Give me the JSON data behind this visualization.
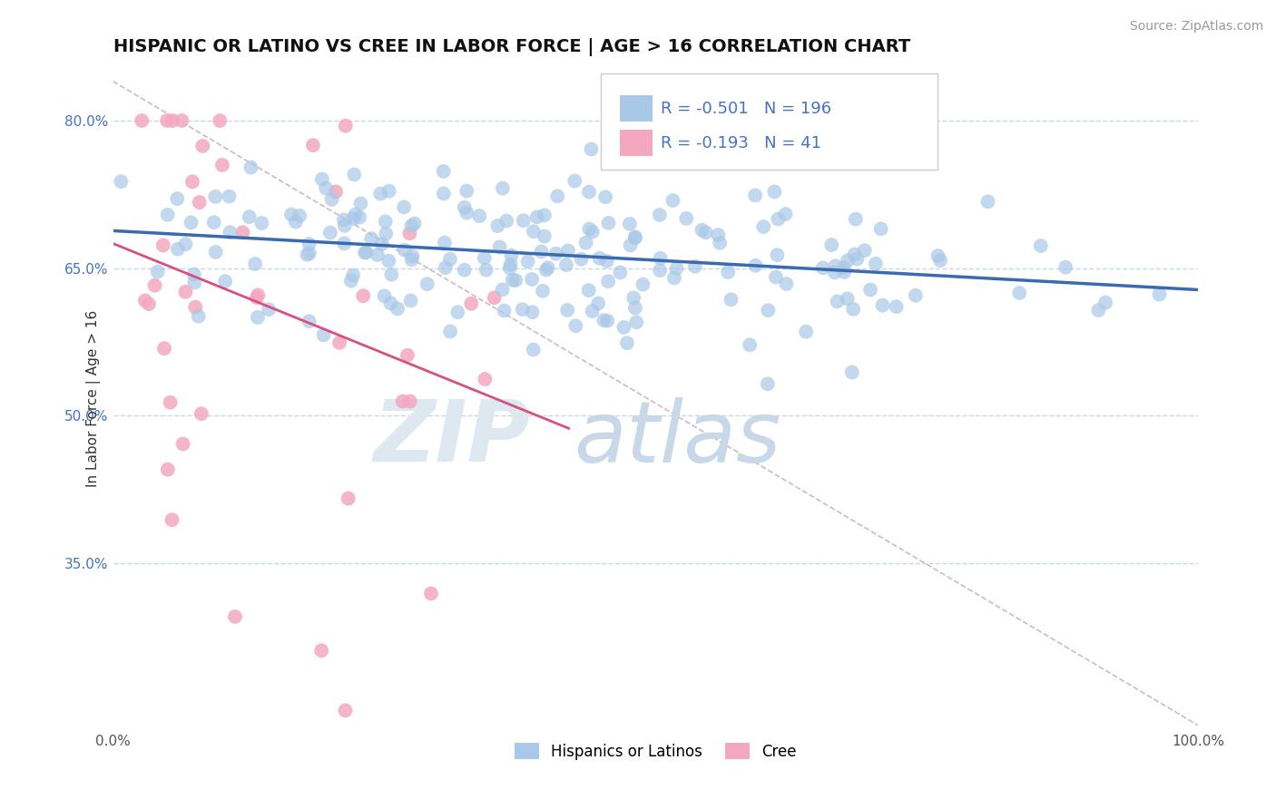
{
  "title": "HISPANIC OR LATINO VS CREE IN LABOR FORCE | AGE > 16 CORRELATION CHART",
  "source": "Source: ZipAtlas.com",
  "ylabel": "In Labor Force | Age > 16",
  "xlim": [
    0.0,
    1.0
  ],
  "ylim": [
    0.18,
    0.855
  ],
  "yticks": [
    0.35,
    0.5,
    0.65,
    0.8
  ],
  "ytick_labels": [
    "35.0%",
    "50.0%",
    "65.0%",
    "80.0%"
  ],
  "xticks": [
    0.0,
    0.25,
    0.5,
    0.75,
    1.0
  ],
  "xtick_labels": [
    "0.0%",
    "",
    "",
    "",
    "100.0%"
  ],
  "blue_R": -0.501,
  "blue_N": 196,
  "pink_R": -0.193,
  "pink_N": 41,
  "blue_color": "#a8c8e8",
  "pink_color": "#f4a8c0",
  "blue_line_color": "#3a6ab0",
  "pink_line_color": "#d85080",
  "ref_line_color": "#d0b8c8",
  "background_color": "#ffffff",
  "grid_color": "#c8d8e8",
  "title_fontsize": 14,
  "axis_label_fontsize": 11,
  "tick_fontsize": 11,
  "legend_fontsize": 13,
  "blue_trend_start_x": 0.0,
  "blue_trend_start_y": 0.688,
  "blue_trend_end_x": 1.0,
  "blue_trend_end_y": 0.628,
  "pink_trend_start_x": 0.0,
  "pink_trend_start_y": 0.675,
  "pink_trend_end_x": 0.42,
  "pink_trend_end_y": 0.487,
  "ref_line_start_x": 0.0,
  "ref_line_start_y": 0.84,
  "ref_line_end_x": 1.0,
  "ref_line_end_y": 0.185,
  "legend_label_blue": "Hispanics or Latinos",
  "legend_label_pink": "Cree",
  "tick_color": "#4472c4"
}
